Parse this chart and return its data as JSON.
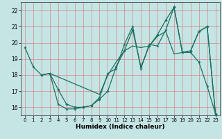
{
  "xlabel": "Humidex (Indice chaleur)",
  "bg_color": "#c5e5e5",
  "grid_color": "#d08888",
  "line_color": "#1a7060",
  "xlim": [
    -0.5,
    23.5
  ],
  "ylim": [
    15.5,
    22.5
  ],
  "yticks": [
    16,
    17,
    18,
    19,
    20,
    21,
    22
  ],
  "xticks": [
    0,
    1,
    2,
    3,
    4,
    5,
    6,
    7,
    8,
    9,
    10,
    11,
    12,
    13,
    14,
    15,
    16,
    17,
    18,
    19,
    20,
    21,
    22,
    23
  ],
  "line1_x": [
    0,
    1,
    2,
    3,
    4,
    5,
    6,
    7,
    8,
    9,
    10,
    11,
    12,
    13,
    14,
    15,
    16,
    17,
    18,
    19,
    20,
    21,
    22,
    23
  ],
  "line1_y": [
    19.7,
    18.5,
    18.0,
    18.1,
    16.2,
    15.9,
    15.9,
    16.0,
    16.1,
    16.6,
    18.1,
    18.4,
    19.9,
    21.0,
    18.4,
    19.9,
    19.8,
    20.8,
    22.2,
    19.4,
    19.4,
    18.8,
    17.3,
    15.6
  ],
  "line2_x": [
    2,
    3,
    4,
    5,
    6,
    7,
    8,
    9,
    10,
    11,
    12,
    13,
    14,
    15,
    16,
    17,
    18,
    19,
    20,
    21,
    22,
    23
  ],
  "line2_y": [
    18.0,
    18.1,
    17.1,
    16.2,
    16.0,
    16.0,
    16.1,
    16.5,
    17.0,
    18.5,
    19.5,
    20.8,
    18.5,
    19.8,
    20.5,
    21.4,
    22.2,
    19.4,
    19.5,
    20.7,
    21.0,
    15.6
  ],
  "line3_x": [
    2,
    3,
    9,
    10,
    11,
    12,
    13,
    14,
    15,
    16,
    17,
    18,
    19,
    20,
    21,
    22,
    23
  ],
  "line3_y": [
    18.0,
    18.1,
    16.8,
    18.0,
    18.8,
    19.5,
    19.8,
    19.7,
    19.8,
    20.4,
    20.7,
    19.3,
    19.4,
    19.5,
    20.7,
    21.0,
    15.6
  ]
}
